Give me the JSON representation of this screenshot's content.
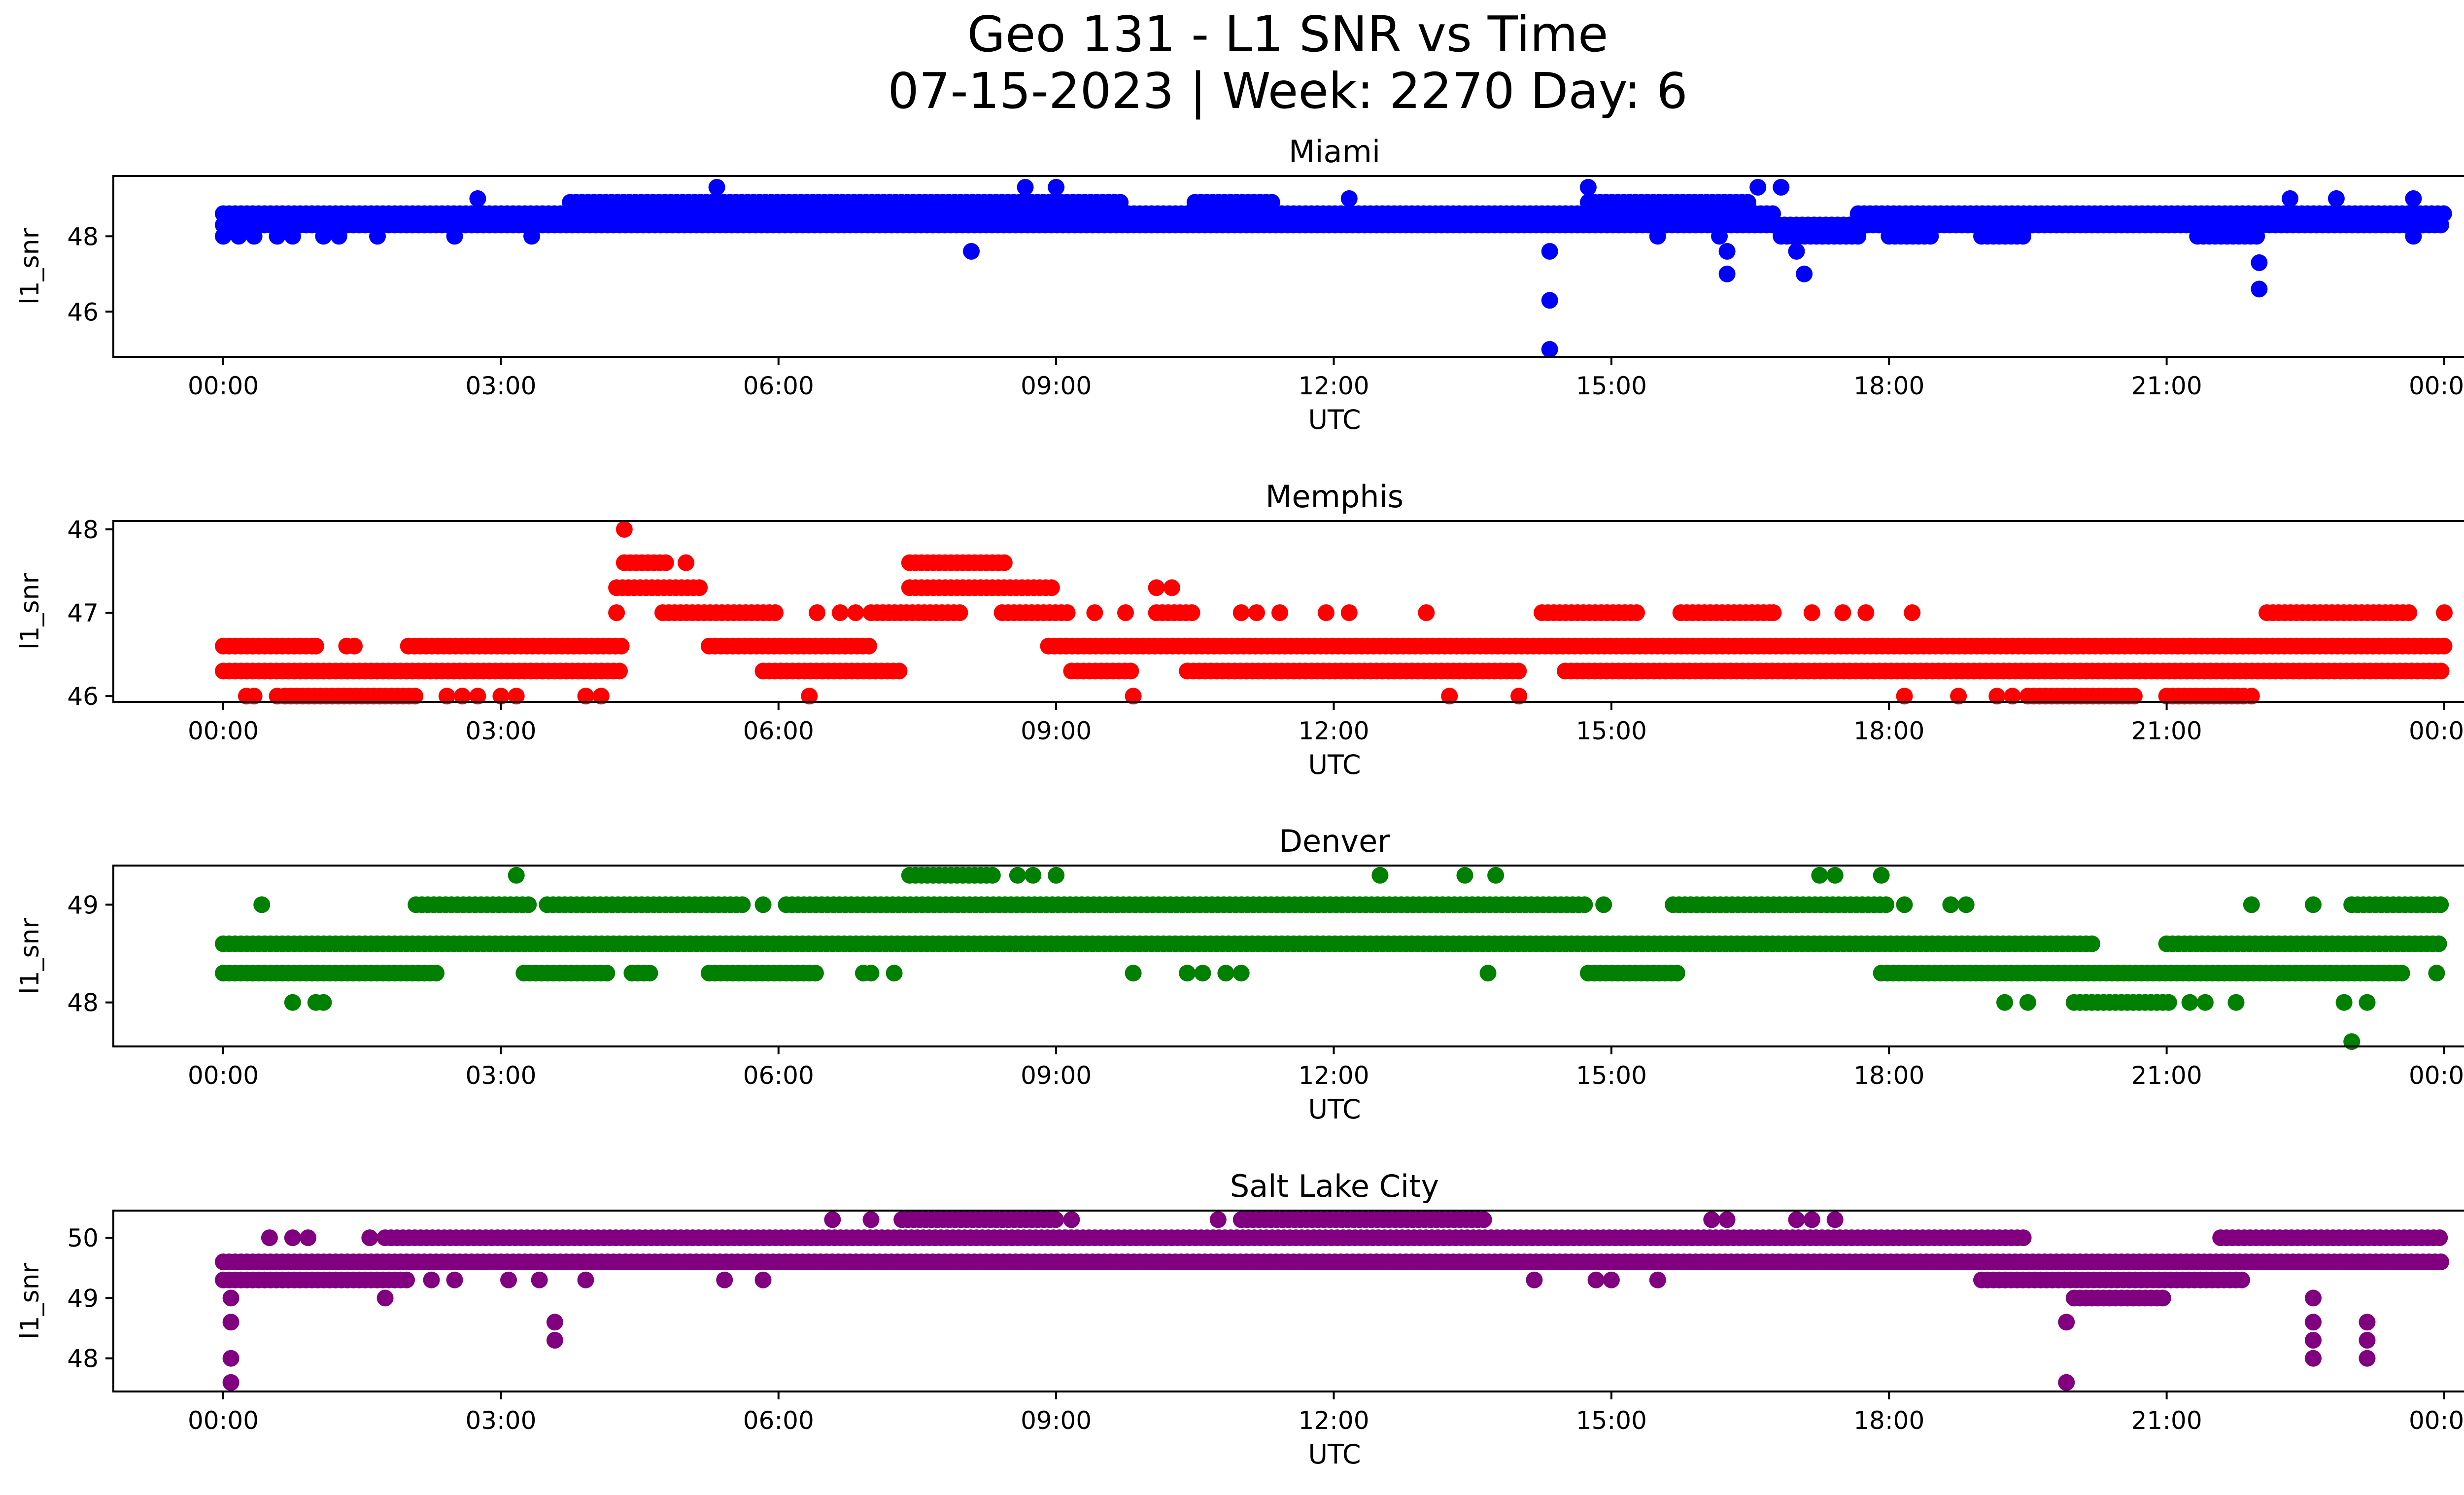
{
  "figure": {
    "title_line1": "Geo 131 - L1 SNR vs Time",
    "title_line2": "07-15-2023 | Week: 2270 Day: 6"
  },
  "chart_data": [
    {
      "type": "scatter",
      "title": "Miami",
      "xlabel": "UTC",
      "ylabel": "l1_snr",
      "color": "#0000ff",
      "xlim": [
        "00:00",
        "24:00"
      ],
      "x_ticks": [
        "00:00",
        "03:00",
        "06:00",
        "09:00",
        "12:00",
        "15:00",
        "18:00",
        "21:00",
        "00:00"
      ],
      "ylim": [
        44.8,
        49.6
      ],
      "y_ticks": [
        46,
        48
      ],
      "bands": [
        {
          "y": 48.3,
          "from": "00:00",
          "to": "24:00"
        },
        {
          "y": 48.6,
          "from": "00:00",
          "to": "16:45"
        },
        {
          "y": 48.6,
          "from": "17:40",
          "to": "24:00"
        },
        {
          "y": 48.9,
          "from": "03:45",
          "to": "09:45"
        },
        {
          "y": 48.9,
          "from": "10:30",
          "to": "11:20"
        },
        {
          "y": 48.9,
          "from": "14:45",
          "to": "16:30"
        },
        {
          "y": 48.0,
          "from": "16:50",
          "to": "17:40"
        },
        {
          "y": 48.0,
          "from": "18:00",
          "to": "18:30"
        },
        {
          "y": 48.0,
          "from": "19:00",
          "to": "19:30"
        },
        {
          "y": 48.0,
          "from": "21:20",
          "to": "22:00"
        }
      ],
      "points": [
        {
          "x": "00:00",
          "y": 48.0
        },
        {
          "x": "00:10",
          "y": 48.0
        },
        {
          "x": "00:20",
          "y": 48.0
        },
        {
          "x": "00:35",
          "y": 48.0
        },
        {
          "x": "00:45",
          "y": 48.0
        },
        {
          "x": "01:05",
          "y": 48.0
        },
        {
          "x": "01:15",
          "y": 48.0
        },
        {
          "x": "01:40",
          "y": 48.0
        },
        {
          "x": "02:30",
          "y": 48.0
        },
        {
          "x": "02:45",
          "y": 49.0
        },
        {
          "x": "03:20",
          "y": 48.0
        },
        {
          "x": "05:20",
          "y": 49.3
        },
        {
          "x": "08:05",
          "y": 47.6
        },
        {
          "x": "08:40",
          "y": 49.3
        },
        {
          "x": "09:00",
          "y": 49.3
        },
        {
          "x": "12:10",
          "y": 49.0
        },
        {
          "x": "14:20",
          "y": 47.6
        },
        {
          "x": "14:20",
          "y": 46.3
        },
        {
          "x": "14:20",
          "y": 45.0
        },
        {
          "x": "14:45",
          "y": 49.3
        },
        {
          "x": "15:30",
          "y": 48.0
        },
        {
          "x": "16:10",
          "y": 48.0
        },
        {
          "x": "16:15",
          "y": 47.6
        },
        {
          "x": "16:15",
          "y": 47.0
        },
        {
          "x": "16:35",
          "y": 49.3
        },
        {
          "x": "16:50",
          "y": 49.3
        },
        {
          "x": "17:00",
          "y": 47.6
        },
        {
          "x": "17:05",
          "y": 47.0
        },
        {
          "x": "22:00",
          "y": 47.3
        },
        {
          "x": "22:00",
          "y": 46.6
        },
        {
          "x": "22:20",
          "y": 49.0
        },
        {
          "x": "22:50",
          "y": 49.0
        },
        {
          "x": "23:40",
          "y": 49.0
        },
        {
          "x": "23:40",
          "y": 48.0
        }
      ]
    },
    {
      "type": "scatter",
      "title": "Memphis",
      "xlabel": "UTC",
      "ylabel": "l1_snr",
      "color": "#ff0000",
      "xlim": [
        "00:00",
        "24:00"
      ],
      "x_ticks": [
        "00:00",
        "03:00",
        "06:00",
        "09:00",
        "12:00",
        "15:00",
        "18:00",
        "21:00",
        "00:00"
      ],
      "ylim": [
        45.93,
        48.1
      ],
      "y_ticks": [
        46,
        47,
        48
      ],
      "bands": [
        {
          "y": 46.3,
          "from": "00:00",
          "to": "04:20"
        },
        {
          "y": 46.6,
          "from": "00:00",
          "to": "01:00"
        },
        {
          "y": 46.6,
          "from": "02:00",
          "to": "04:20"
        },
        {
          "y": 46.0,
          "from": "00:40",
          "to": "02:05"
        },
        {
          "y": 47.3,
          "from": "04:15",
          "to": "05:10"
        },
        {
          "y": 47.6,
          "from": "04:20",
          "to": "04:50"
        },
        {
          "y": 47.0,
          "from": "04:45",
          "to": "06:00"
        },
        {
          "y": 46.6,
          "from": "05:15",
          "to": "07:00"
        },
        {
          "y": 46.3,
          "from": "05:50",
          "to": "07:20"
        },
        {
          "y": 47.0,
          "from": "07:00",
          "to": "08:00"
        },
        {
          "y": 47.3,
          "from": "07:25",
          "to": "09:00"
        },
        {
          "y": 47.6,
          "from": "07:25",
          "to": "08:30"
        },
        {
          "y": 47.0,
          "from": "08:25",
          "to": "09:10"
        },
        {
          "y": 46.6,
          "from": "08:55",
          "to": "24:00"
        },
        {
          "y": 46.3,
          "from": "09:10",
          "to": "09:50"
        },
        {
          "y": 47.0,
          "from": "10:05",
          "to": "10:30"
        },
        {
          "y": 46.3,
          "from": "10:25",
          "to": "14:00"
        },
        {
          "y": 47.0,
          "from": "14:15",
          "to": "15:20"
        },
        {
          "y": 46.3,
          "from": "14:30",
          "to": "17:00"
        },
        {
          "y": 47.0,
          "from": "15:45",
          "to": "16:45"
        },
        {
          "y": 46.3,
          "from": "17:00",
          "to": "24:00"
        },
        {
          "y": 46.0,
          "from": "19:30",
          "to": "20:40"
        },
        {
          "y": 46.0,
          "from": "21:00",
          "to": "21:50"
        },
        {
          "y": 47.0,
          "from": "22:05",
          "to": "23:40"
        }
      ],
      "points": [
        {
          "x": "00:15",
          "y": 46.0
        },
        {
          "x": "00:20",
          "y": 46.0
        },
        {
          "x": "00:35",
          "y": 46.0
        },
        {
          "x": "01:00",
          "y": 46.6
        },
        {
          "x": "01:20",
          "y": 46.6
        },
        {
          "x": "01:25",
          "y": 46.6
        },
        {
          "x": "02:25",
          "y": 46.0
        },
        {
          "x": "02:35",
          "y": 46.0
        },
        {
          "x": "02:45",
          "y": 46.0
        },
        {
          "x": "03:00",
          "y": 46.0
        },
        {
          "x": "03:10",
          "y": 46.0
        },
        {
          "x": "03:55",
          "y": 46.0
        },
        {
          "x": "04:05",
          "y": 46.0
        },
        {
          "x": "04:15",
          "y": 47.0
        },
        {
          "x": "04:20",
          "y": 48.0
        },
        {
          "x": "05:00",
          "y": 47.6
        },
        {
          "x": "06:25",
          "y": 47.0
        },
        {
          "x": "06:20",
          "y": 46.0
        },
        {
          "x": "06:40",
          "y": 47.0
        },
        {
          "x": "06:50",
          "y": 47.0
        },
        {
          "x": "09:25",
          "y": 47.0
        },
        {
          "x": "09:45",
          "y": 47.0
        },
        {
          "x": "09:50",
          "y": 46.0
        },
        {
          "x": "10:05",
          "y": 47.3
        },
        {
          "x": "10:15",
          "y": 47.3
        },
        {
          "x": "11:00",
          "y": 47.0
        },
        {
          "x": "11:10",
          "y": 47.0
        },
        {
          "x": "11:25",
          "y": 47.0
        },
        {
          "x": "11:55",
          "y": 47.0
        },
        {
          "x": "12:10",
          "y": 47.0
        },
        {
          "x": "13:00",
          "y": 47.0
        },
        {
          "x": "13:15",
          "y": 46.0
        },
        {
          "x": "14:00",
          "y": 46.0
        },
        {
          "x": "16:45",
          "y": 47.0
        },
        {
          "x": "17:10",
          "y": 47.0
        },
        {
          "x": "17:30",
          "y": 47.0
        },
        {
          "x": "17:45",
          "y": 47.0
        },
        {
          "x": "18:10",
          "y": 46.0
        },
        {
          "x": "18:15",
          "y": 47.0
        },
        {
          "x": "18:45",
          "y": 46.0
        },
        {
          "x": "19:10",
          "y": 46.0
        },
        {
          "x": "19:20",
          "y": 46.0
        },
        {
          "x": "21:55",
          "y": 46.0
        },
        {
          "x": "24:00",
          "y": 47.0
        }
      ]
    },
    {
      "type": "scatter",
      "title": "Denver",
      "xlabel": "UTC",
      "ylabel": "l1_snr",
      "color": "#008000",
      "xlim": [
        "00:00",
        "24:00"
      ],
      "x_ticks": [
        "00:00",
        "03:00",
        "06:00",
        "09:00",
        "12:00",
        "15:00",
        "18:00",
        "21:00",
        "00:00"
      ],
      "ylim": [
        47.55,
        49.4
      ],
      "y_ticks": [
        48,
        49
      ],
      "bands": [
        {
          "y": 48.6,
          "from": "00:00",
          "to": "20:15"
        },
        {
          "y": 48.6,
          "from": "21:00",
          "to": "24:00"
        },
        {
          "y": 48.3,
          "from": "00:00",
          "to": "02:20"
        },
        {
          "y": 49.0,
          "from": "02:05",
          "to": "03:20"
        },
        {
          "y": 49.0,
          "from": "03:30",
          "to": "05:40"
        },
        {
          "y": 48.3,
          "from": "03:15",
          "to": "04:10"
        },
        {
          "y": 48.3,
          "from": "04:25",
          "to": "04:40"
        },
        {
          "y": 48.3,
          "from": "05:15",
          "to": "06:25"
        },
        {
          "y": 49.0,
          "from": "06:05",
          "to": "14:45"
        },
        {
          "y": 49.3,
          "from": "07:25",
          "to": "08:20"
        },
        {
          "y": 48.3,
          "from": "14:45",
          "to": "15:45"
        },
        {
          "y": 49.0,
          "from": "15:40",
          "to": "18:00"
        },
        {
          "y": 48.3,
          "from": "17:55",
          "to": "23:35"
        },
        {
          "y": 48.0,
          "from": "20:00",
          "to": "21:05"
        },
        {
          "y": 49.0,
          "from": "23:00",
          "to": "24:00"
        }
      ],
      "points": [
        {
          "x": "00:25",
          "y": 49.0
        },
        {
          "x": "00:45",
          "y": 48.0
        },
        {
          "x": "01:00",
          "y": 48.0
        },
        {
          "x": "01:05",
          "y": 48.0
        },
        {
          "x": "03:10",
          "y": 49.3
        },
        {
          "x": "05:50",
          "y": 49.0
        },
        {
          "x": "06:55",
          "y": 48.3
        },
        {
          "x": "07:00",
          "y": 48.3
        },
        {
          "x": "07:15",
          "y": 48.3
        },
        {
          "x": "08:35",
          "y": 49.3
        },
        {
          "x": "08:45",
          "y": 49.3
        },
        {
          "x": "09:00",
          "y": 49.3
        },
        {
          "x": "09:50",
          "y": 48.3
        },
        {
          "x": "10:25",
          "y": 48.3
        },
        {
          "x": "10:35",
          "y": 48.3
        },
        {
          "x": "10:50",
          "y": 48.3
        },
        {
          "x": "11:00",
          "y": 48.3
        },
        {
          "x": "12:30",
          "y": 49.3
        },
        {
          "x": "13:25",
          "y": 49.3
        },
        {
          "x": "13:40",
          "y": 48.3
        },
        {
          "x": "13:45",
          "y": 49.3
        },
        {
          "x": "14:55",
          "y": 49.0
        },
        {
          "x": "17:15",
          "y": 49.3
        },
        {
          "x": "17:25",
          "y": 49.3
        },
        {
          "x": "17:55",
          "y": 49.3
        },
        {
          "x": "18:10",
          "y": 49.0
        },
        {
          "x": "18:40",
          "y": 49.0
        },
        {
          "x": "18:50",
          "y": 49.0
        },
        {
          "x": "19:15",
          "y": 48.0
        },
        {
          "x": "19:30",
          "y": 48.0
        },
        {
          "x": "21:15",
          "y": 48.0
        },
        {
          "x": "21:25",
          "y": 48.0
        },
        {
          "x": "21:45",
          "y": 48.0
        },
        {
          "x": "21:55",
          "y": 49.0
        },
        {
          "x": "22:35",
          "y": 49.0
        },
        {
          "x": "22:55",
          "y": 48.0
        },
        {
          "x": "23:00",
          "y": 47.6
        },
        {
          "x": "23:10",
          "y": 48.0
        },
        {
          "x": "23:55",
          "y": 48.3
        }
      ]
    },
    {
      "type": "scatter",
      "title": "Salt Lake City",
      "xlabel": "UTC",
      "ylabel": "l1_snr",
      "color": "#800080",
      "xlim": [
        "00:00",
        "24:00"
      ],
      "x_ticks": [
        "00:00",
        "03:00",
        "06:00",
        "09:00",
        "12:00",
        "15:00",
        "18:00",
        "21:00",
        "00:00"
      ],
      "ylim": [
        47.45,
        50.45
      ],
      "y_ticks": [
        48,
        49,
        50
      ],
      "bands": [
        {
          "y": 49.6,
          "from": "00:00",
          "to": "24:00"
        },
        {
          "y": 49.3,
          "from": "00:00",
          "to": "02:00"
        },
        {
          "y": 50.0,
          "from": "01:45",
          "to": "19:30"
        },
        {
          "y": 50.3,
          "from": "07:20",
          "to": "09:00"
        },
        {
          "y": 50.3,
          "from": "11:00",
          "to": "13:40"
        },
        {
          "y": 49.3,
          "from": "19:00",
          "to": "21:50"
        },
        {
          "y": 49.0,
          "from": "20:00",
          "to": "21:00"
        },
        {
          "y": 50.0,
          "from": "21:35",
          "to": "24:00"
        }
      ],
      "points": [
        {
          "x": "00:05",
          "y": 49.0
        },
        {
          "x": "00:05",
          "y": 48.6
        },
        {
          "x": "00:05",
          "y": 48.0
        },
        {
          "x": "00:05",
          "y": 47.6
        },
        {
          "x": "00:30",
          "y": 50.0
        },
        {
          "x": "00:45",
          "y": 50.0
        },
        {
          "x": "00:55",
          "y": 50.0
        },
        {
          "x": "01:35",
          "y": 50.0
        },
        {
          "x": "01:45",
          "y": 49.0
        },
        {
          "x": "02:15",
          "y": 49.3
        },
        {
          "x": "02:30",
          "y": 49.3
        },
        {
          "x": "03:05",
          "y": 49.3
        },
        {
          "x": "03:25",
          "y": 49.3
        },
        {
          "x": "03:35",
          "y": 48.6
        },
        {
          "x": "03:35",
          "y": 48.3
        },
        {
          "x": "03:55",
          "y": 49.3
        },
        {
          "x": "05:25",
          "y": 49.3
        },
        {
          "x": "05:50",
          "y": 49.3
        },
        {
          "x": "06:35",
          "y": 50.3
        },
        {
          "x": "07:00",
          "y": 50.3
        },
        {
          "x": "09:10",
          "y": 50.3
        },
        {
          "x": "10:45",
          "y": 50.3
        },
        {
          "x": "14:10",
          "y": 49.3
        },
        {
          "x": "14:50",
          "y": 49.3
        },
        {
          "x": "15:00",
          "y": 49.3
        },
        {
          "x": "15:30",
          "y": 49.3
        },
        {
          "x": "16:05",
          "y": 50.3
        },
        {
          "x": "16:15",
          "y": 50.3
        },
        {
          "x": "17:00",
          "y": 50.3
        },
        {
          "x": "17:10",
          "y": 50.3
        },
        {
          "x": "17:25",
          "y": 50.3
        },
        {
          "x": "19:55",
          "y": 48.6
        },
        {
          "x": "19:55",
          "y": 47.6
        },
        {
          "x": "22:35",
          "y": 49.0
        },
        {
          "x": "22:35",
          "y": 48.6
        },
        {
          "x": "22:35",
          "y": 48.3
        },
        {
          "x": "22:35",
          "y": 48.0
        },
        {
          "x": "23:10",
          "y": 48.6
        },
        {
          "x": "23:10",
          "y": 48.3
        },
        {
          "x": "23:10",
          "y": 48.0
        }
      ]
    }
  ]
}
